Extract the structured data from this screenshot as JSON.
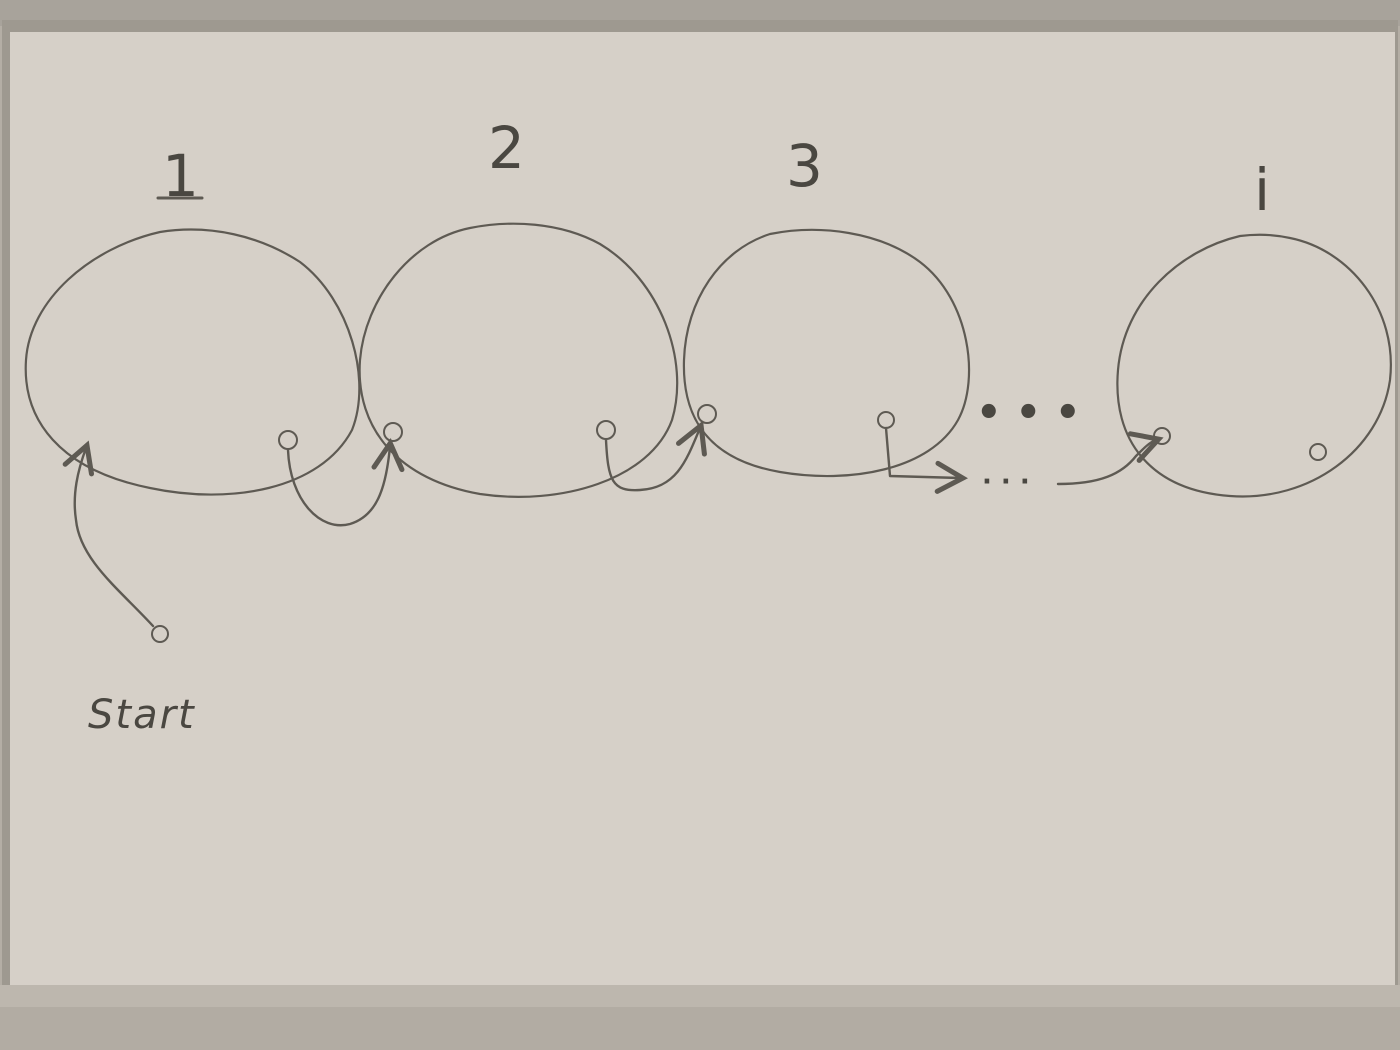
{
  "diagram": {
    "labels": {
      "cluster_1": "1",
      "cluster_2": "2",
      "cluster_3": "3",
      "cluster_i": "i",
      "start": "Start"
    },
    "gap_ellipsis": "• • •",
    "connector_ellipsis": "· · ·",
    "colors": {
      "board": "#d6d0c8",
      "frame": "#9e9990",
      "ink": "#5e5a53",
      "floor": "#b6b0a7"
    }
  }
}
